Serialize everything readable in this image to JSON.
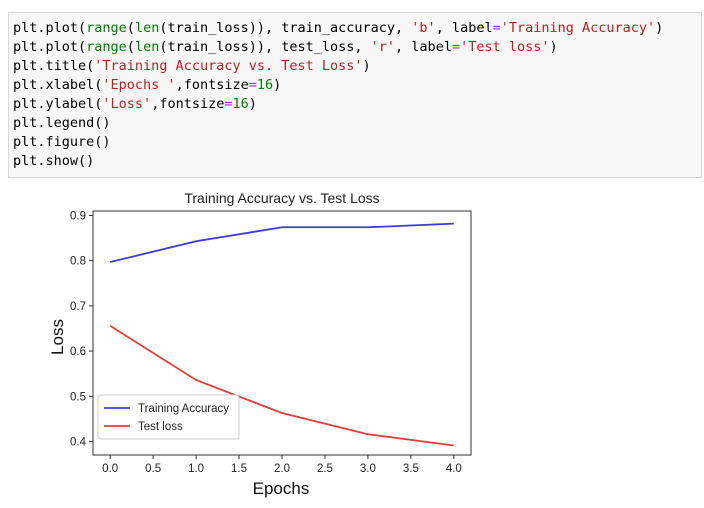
{
  "code_cell": {
    "lines": [
      [
        {
          "t": "plt.plot(",
          "c": "plain"
        },
        {
          "t": "range",
          "c": "builtin"
        },
        {
          "t": "(",
          "c": "plain"
        },
        {
          "t": "len",
          "c": "builtin"
        },
        {
          "t": "(train_loss)), train_accuracy, ",
          "c": "plain"
        },
        {
          "t": "'b'",
          "c": "str"
        },
        {
          "t": ", label",
          "c": "plain"
        },
        {
          "t": "=",
          "c": "op"
        },
        {
          "t": "'Training Accuracy'",
          "c": "str"
        },
        {
          "t": ")",
          "c": "plain"
        }
      ],
      [
        {
          "t": "plt.plot(",
          "c": "plain"
        },
        {
          "t": "range",
          "c": "builtin"
        },
        {
          "t": "(",
          "c": "plain"
        },
        {
          "t": "len",
          "c": "builtin"
        },
        {
          "t": "(train_loss)), test_loss, ",
          "c": "plain"
        },
        {
          "t": "'r'",
          "c": "str"
        },
        {
          "t": ", label",
          "c": "plain"
        },
        {
          "t": "=",
          "c": "op"
        },
        {
          "t": "'Test loss'",
          "c": "str"
        },
        {
          "t": ")",
          "c": "plain"
        }
      ],
      [
        {
          "t": "plt.title(",
          "c": "plain"
        },
        {
          "t": "'Training Accuracy vs. Test Loss'",
          "c": "str"
        },
        {
          "t": ")",
          "c": "plain"
        }
      ],
      [
        {
          "t": "plt.xlabel(",
          "c": "plain"
        },
        {
          "t": "'Epochs '",
          "c": "str"
        },
        {
          "t": ",fontsize",
          "c": "plain"
        },
        {
          "t": "=",
          "c": "op"
        },
        {
          "t": "16",
          "c": "num"
        },
        {
          "t": ")",
          "c": "plain"
        }
      ],
      [
        {
          "t": "plt.ylabel(",
          "c": "plain"
        },
        {
          "t": "'Loss'",
          "c": "str"
        },
        {
          "t": ",fontsize",
          "c": "plain"
        },
        {
          "t": "=",
          "c": "op"
        },
        {
          "t": "16",
          "c": "num"
        },
        {
          "t": ")",
          "c": "plain"
        }
      ],
      [
        {
          "t": "plt.legend()",
          "c": "plain"
        }
      ],
      [
        {
          "t": "plt.figure()",
          "c": "plain"
        }
      ],
      [
        {
          "t": "plt.show()",
          "c": "plain"
        }
      ]
    ]
  },
  "chart_data": {
    "type": "line",
    "title": "Training Accuracy vs. Test Loss",
    "xlabel": "Epochs",
    "ylabel": "Loss",
    "x": [
      0,
      1,
      2,
      3,
      4
    ],
    "xlim": [
      -0.2,
      4.2
    ],
    "ylim": [
      0.37,
      0.91
    ],
    "xticks": [
      0.0,
      0.5,
      1.0,
      1.5,
      2.0,
      2.5,
      3.0,
      3.5,
      4.0
    ],
    "xtick_labels": [
      "0.0",
      "0.5",
      "1.0",
      "1.5",
      "2.0",
      "2.5",
      "3.0",
      "3.5",
      "4.0"
    ],
    "yticks": [
      0.4,
      0.5,
      0.6,
      0.7,
      0.8,
      0.9
    ],
    "ytick_labels": [
      "0.4",
      "0.5",
      "0.6",
      "0.7",
      "0.8",
      "0.9"
    ],
    "grid": false,
    "legend_position": "lower-left",
    "series": [
      {
        "name": "Training Accuracy",
        "color": "#3b3bd9",
        "values": [
          0.797,
          0.843,
          0.874,
          0.874,
          0.882
        ]
      },
      {
        "name": "Test loss",
        "color": "#e0403a",
        "values": [
          0.656,
          0.536,
          0.463,
          0.416,
          0.391
        ]
      }
    ]
  }
}
